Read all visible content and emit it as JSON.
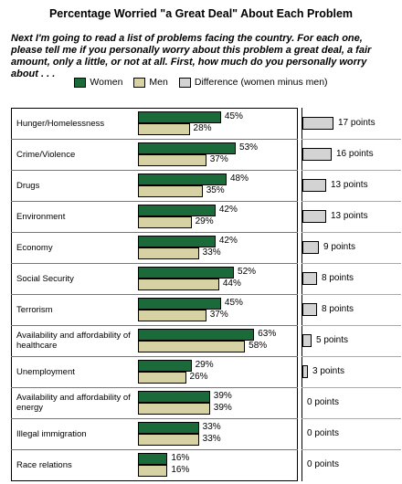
{
  "chart_data": {
    "type": "bar",
    "title": "Percentage Worried \"a Great Deal\" About Each Problem",
    "subtitle": "Next I'm going to read a list of problems facing the country. For each one, please tell me if you personally worry about this problem a great deal, a fair amount, only a little, or not at all. First, how much do you personally worry about . . .",
    "legend": "top",
    "categories": [
      "Hunger/Homelessness",
      "Crime/Violence",
      "Drugs",
      "Environment",
      "Economy",
      "Social Security",
      "Terrorism",
      "Availability and affordability of healthcare",
      "Unemployment",
      "Availability and affordability of energy",
      "Illegal immigration",
      "Race relations"
    ],
    "series": [
      {
        "name": "Women",
        "color": "#1b6b3a",
        "values": [
          45,
          53,
          48,
          42,
          42,
          52,
          45,
          63,
          29,
          39,
          33,
          16
        ],
        "value_labels": [
          "45%",
          "53%",
          "48%",
          "42%",
          "42%",
          "52%",
          "45%",
          "63%",
          "29%",
          "39%",
          "33%",
          "16%"
        ]
      },
      {
        "name": "Men",
        "color": "#d6d2a4",
        "values": [
          28,
          37,
          35,
          29,
          33,
          44,
          37,
          58,
          26,
          39,
          33,
          16
        ],
        "value_labels": [
          "28%",
          "37%",
          "35%",
          "29%",
          "33%",
          "44%",
          "37%",
          "58%",
          "26%",
          "39%",
          "33%",
          "16%"
        ]
      },
      {
        "name": "Difference (women minus men)",
        "color": "#d3d3d3",
        "values": [
          17,
          16,
          13,
          13,
          9,
          8,
          8,
          5,
          3,
          0,
          0,
          0
        ],
        "value_labels": [
          "17 points",
          "16 points",
          "13 points",
          "13 points",
          "9 points",
          "8 points",
          "8 points",
          "5 points",
          "3 points",
          "0 points",
          "0 points",
          "0 points"
        ]
      }
    ]
  }
}
